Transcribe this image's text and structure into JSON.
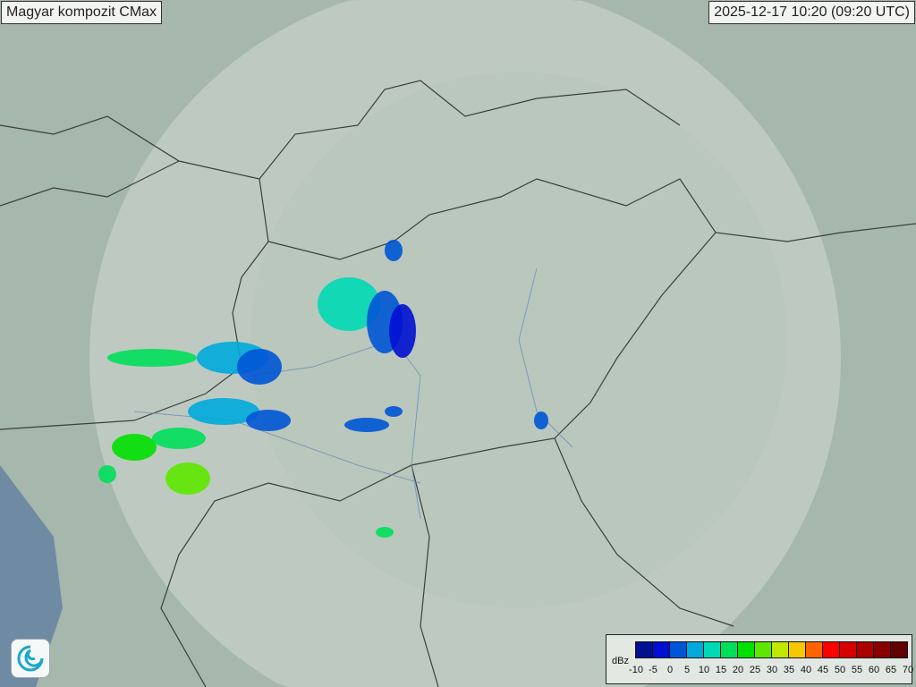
{
  "title": "Magyar kompozit  CMax",
  "timestamp": "2025-12-17 10:20 (09:20 UTC)",
  "legend": {
    "unit": "dBz",
    "ticks": [
      "-10",
      "-5",
      "0",
      "5",
      "10",
      "15",
      "20",
      "25",
      "30",
      "35",
      "40",
      "45",
      "50",
      "55",
      "60",
      "65",
      "70"
    ],
    "colors": [
      "#00108f",
      "#0010d0",
      "#0055d5",
      "#00aadb",
      "#00d9b5",
      "#00df5a",
      "#00e000",
      "#5de800",
      "#c0e800",
      "#f5c800",
      "#ff6400",
      "#ff0000",
      "#d60000",
      "#aa0000",
      "#860000",
      "#600000"
    ]
  },
  "logo": {
    "icon": "met-service-swirl-logo"
  }
}
